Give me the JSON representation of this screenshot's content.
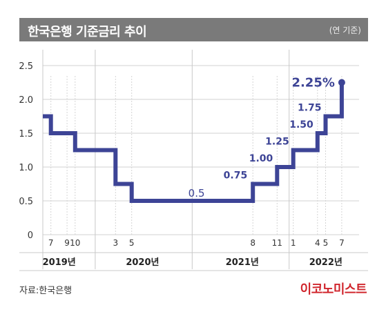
{
  "header": {
    "title": "한국은행 기준금리 추이",
    "unit": "(연 기준)"
  },
  "footer": {
    "source": "자료:한국은행",
    "brand": "이코노미스트"
  },
  "colors": {
    "line": "#3d4496",
    "labels": "#3d4496",
    "grid": "#d0d0d0",
    "title_bg": "#7a7a7a",
    "brand": "#d0262d"
  },
  "chart_data": {
    "type": "line",
    "title": "한국은행 기준금리 추이",
    "ylim": [
      0,
      2.5
    ],
    "yticks": [
      "0",
      "0.5",
      "1.0",
      "1.5",
      "2.0",
      "2.5"
    ],
    "xticks": [
      "7",
      "9",
      "10",
      "3",
      "5",
      "8",
      "11",
      "1",
      "4",
      "5",
      "7"
    ],
    "xtick_dates": [
      "2019-07",
      "2019-09",
      "2019-10",
      "2020-03",
      "2020-05",
      "2021-08",
      "2021-11",
      "2022-01",
      "2022-04",
      "2022-05",
      "2022-07"
    ],
    "year_labels": [
      "2019년",
      "2020년",
      "2021년",
      "2022년"
    ],
    "xlim": [
      "2019-06",
      "2022-07"
    ],
    "series": [
      {
        "points": [
          {
            "x": "2019-06",
            "y": 1.75
          },
          {
            "x": "2019-07",
            "y": 1.5
          },
          {
            "x": "2019-10",
            "y": 1.25
          },
          {
            "x": "2020-03",
            "y": 0.75
          },
          {
            "x": "2020-05",
            "y": 0.5
          },
          {
            "x": "2021-08",
            "y": 0.75
          },
          {
            "x": "2021-11",
            "y": 1.0
          },
          {
            "x": "2022-01",
            "y": 1.25
          },
          {
            "x": "2022-04",
            "y": 1.5
          },
          {
            "x": "2022-05",
            "y": 1.75
          },
          {
            "x": "2022-07",
            "y": 2.25
          }
        ]
      }
    ],
    "data_labels": [
      {
        "text": "0.5",
        "x": "2020-12",
        "y": 0.5
      },
      {
        "text": "0.75",
        "x": "2021-08",
        "y": 0.75
      },
      {
        "text": "1.00",
        "x": "2021-11",
        "y": 1.0
      },
      {
        "text": "1.25",
        "x": "2022-01",
        "y": 1.25
      },
      {
        "text": "1.50",
        "x": "2022-04",
        "y": 1.5
      },
      {
        "text": "1.75",
        "x": "2022-05",
        "y": 1.75
      },
      {
        "text": "2.25%",
        "x": "2022-07",
        "y": 2.25
      }
    ]
  }
}
